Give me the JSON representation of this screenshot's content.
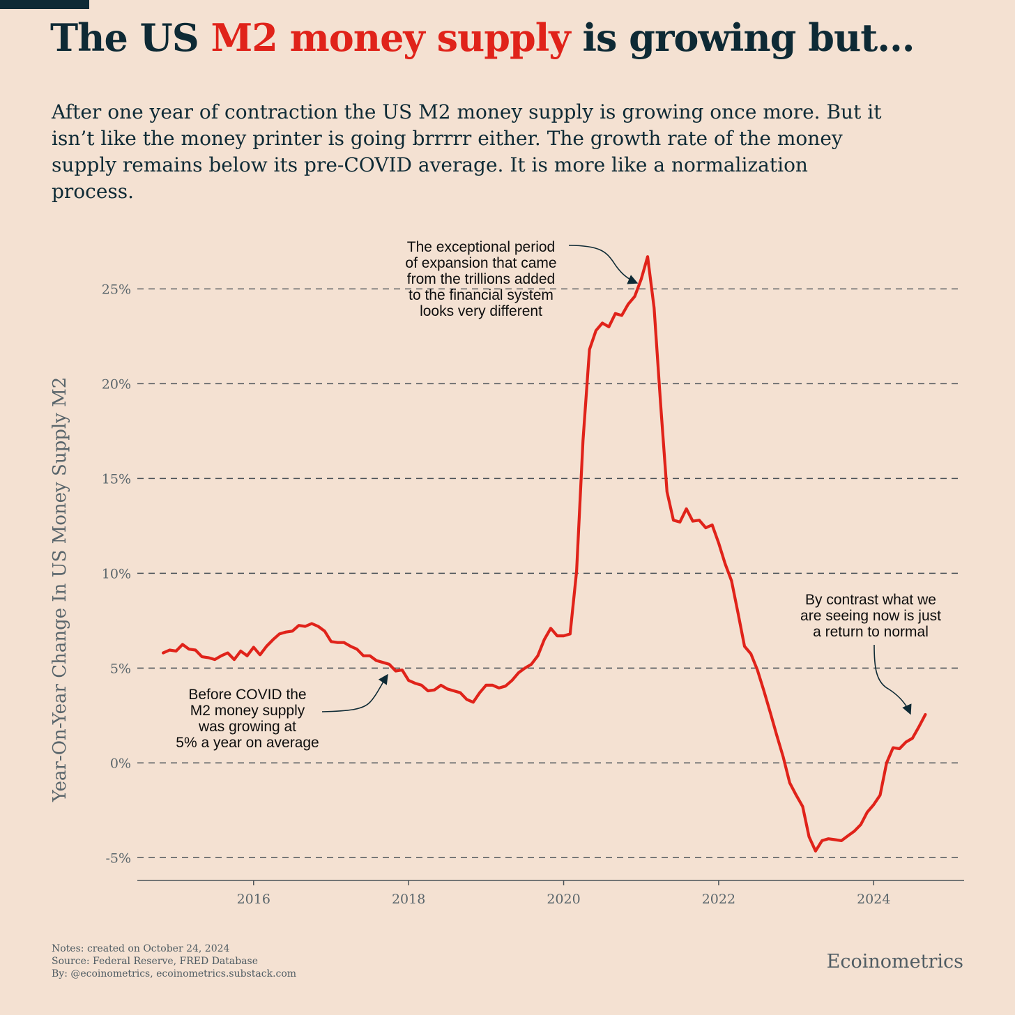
{
  "title": {
    "part1": "The US ",
    "highlight": "M2 money supply",
    "part2": " is growing but..."
  },
  "subtitle": "After one year of contraction the US M2 money supply is growing once more. But it isn’t like the money printer is going brrrrr either. The growth rate of the money supply remains below its pre-COVID average. It is more like a normalization process.",
  "notes": {
    "created": "Notes: created on October 24, 2024",
    "source": "Source: Federal Reserve, FRED Database",
    "by": "By: @ecoinometrics, ecoinometrics.substack.com"
  },
  "brand": "Ecoinometrics",
  "colors": {
    "background": "#f4e1d2",
    "text": "#0e2a35",
    "accent": "#e0231a",
    "muted": "#4f5c63"
  },
  "chart_data": {
    "type": "line",
    "ylabel": "Year-On-Year Change In US Money Supply M2",
    "xlabel": "",
    "xlim": [
      "2014-07",
      "2025-03"
    ],
    "ylim": [
      -6.2,
      27
    ],
    "yticks": [
      -5,
      0,
      5,
      10,
      15,
      20,
      25
    ],
    "ytick_labels": [
      "-5%",
      "0%",
      "5%",
      "10%",
      "15%",
      "20%",
      "25%"
    ],
    "xticks": [
      "2016",
      "2018",
      "2020",
      "2022",
      "2024"
    ],
    "grid": "horizontal dashed",
    "series": [
      {
        "color": "#e0231a",
        "x": [
          "2014-11",
          "2014-12",
          "2015-01",
          "2015-02",
          "2015-03",
          "2015-04",
          "2015-05",
          "2015-06",
          "2015-07",
          "2015-08",
          "2015-09",
          "2015-10",
          "2015-11",
          "2015-12",
          "2016-01",
          "2016-02",
          "2016-03",
          "2016-04",
          "2016-05",
          "2016-06",
          "2016-07",
          "2016-08",
          "2016-09",
          "2016-10",
          "2016-11",
          "2016-12",
          "2017-01",
          "2017-02",
          "2017-03",
          "2017-04",
          "2017-05",
          "2017-06",
          "2017-07",
          "2017-08",
          "2017-09",
          "2017-10",
          "2017-11",
          "2017-12",
          "2018-01",
          "2018-02",
          "2018-03",
          "2018-04",
          "2018-05",
          "2018-06",
          "2018-07",
          "2018-08",
          "2018-09",
          "2018-10",
          "2018-11",
          "2018-12",
          "2019-01",
          "2019-02",
          "2019-03",
          "2019-04",
          "2019-05",
          "2019-06",
          "2019-07",
          "2019-08",
          "2019-09",
          "2019-10",
          "2019-11",
          "2019-12",
          "2020-01",
          "2020-02",
          "2020-03",
          "2020-04",
          "2020-05",
          "2020-06",
          "2020-07",
          "2020-08",
          "2020-09",
          "2020-10",
          "2020-11",
          "2020-12",
          "2021-01",
          "2021-02",
          "2021-03",
          "2021-04",
          "2021-05",
          "2021-06",
          "2021-07",
          "2021-08",
          "2021-09",
          "2021-10",
          "2021-11",
          "2021-12",
          "2022-01",
          "2022-02",
          "2022-03",
          "2022-04",
          "2022-05",
          "2022-06",
          "2022-07",
          "2022-08",
          "2022-09",
          "2022-10",
          "2022-11",
          "2022-12",
          "2023-01",
          "2023-02",
          "2023-03",
          "2023-04",
          "2023-05",
          "2023-06",
          "2023-07",
          "2023-08",
          "2023-09",
          "2023-10",
          "2023-11",
          "2023-12",
          "2024-01",
          "2024-02",
          "2024-03",
          "2024-04",
          "2024-05",
          "2024-06",
          "2024-07",
          "2024-08",
          "2024-09"
        ],
        "values": [
          5.8,
          5.95,
          5.9,
          6.25,
          6.0,
          5.95,
          5.6,
          5.55,
          5.45,
          5.65,
          5.8,
          5.45,
          5.9,
          5.65,
          6.1,
          5.7,
          6.15,
          6.5,
          6.8,
          6.9,
          6.95,
          7.25,
          7.2,
          7.35,
          7.2,
          6.95,
          6.4,
          6.35,
          6.35,
          6.15,
          6.0,
          5.65,
          5.65,
          5.4,
          5.3,
          5.2,
          4.85,
          4.9,
          4.35,
          4.2,
          4.1,
          3.8,
          3.85,
          4.1,
          3.9,
          3.8,
          3.7,
          3.35,
          3.2,
          3.7,
          4.1,
          4.1,
          3.95,
          4.05,
          4.35,
          4.75,
          5.0,
          5.2,
          5.65,
          6.5,
          7.1,
          6.7,
          6.7,
          6.8,
          10.1,
          17.0,
          21.8,
          22.8,
          23.2,
          23.0,
          23.7,
          23.6,
          24.2,
          24.6,
          25.5,
          26.7,
          24.0,
          19.0,
          14.3,
          12.8,
          12.7,
          13.4,
          12.75,
          12.8,
          12.4,
          12.55,
          11.6,
          10.5,
          9.6,
          7.9,
          6.15,
          5.75,
          4.9,
          3.8,
          2.65,
          1.45,
          0.3,
          -1.05,
          -1.7,
          -2.3,
          -3.9,
          -4.65,
          -4.1,
          -4.0,
          -4.05,
          -4.1,
          -3.85,
          -3.6,
          -3.25,
          -2.6,
          -2.2,
          -1.7,
          0.0,
          0.8,
          0.75,
          1.1,
          1.3,
          1.9,
          2.55
        ]
      }
    ],
    "annotations": [
      {
        "text": "The exceptional period of expansion that came from the trillions added to the financial system looks very different",
        "lines": [
          "The exceptional period",
          "of expansion that came",
          "from the trillions added",
          "to the financial system",
          "looks very different"
        ]
      },
      {
        "text": "Before COVID the M2 money supply was growing at 5% a year on average",
        "lines": [
          "Before COVID the",
          "M2 money supply",
          "was growing at",
          "5% a year on average"
        ]
      },
      {
        "text": "By contrast what we are seeing now is just a return to normal",
        "lines": [
          "By contrast what we",
          "are seeing now is just",
          "a return to normal"
        ]
      }
    ]
  }
}
